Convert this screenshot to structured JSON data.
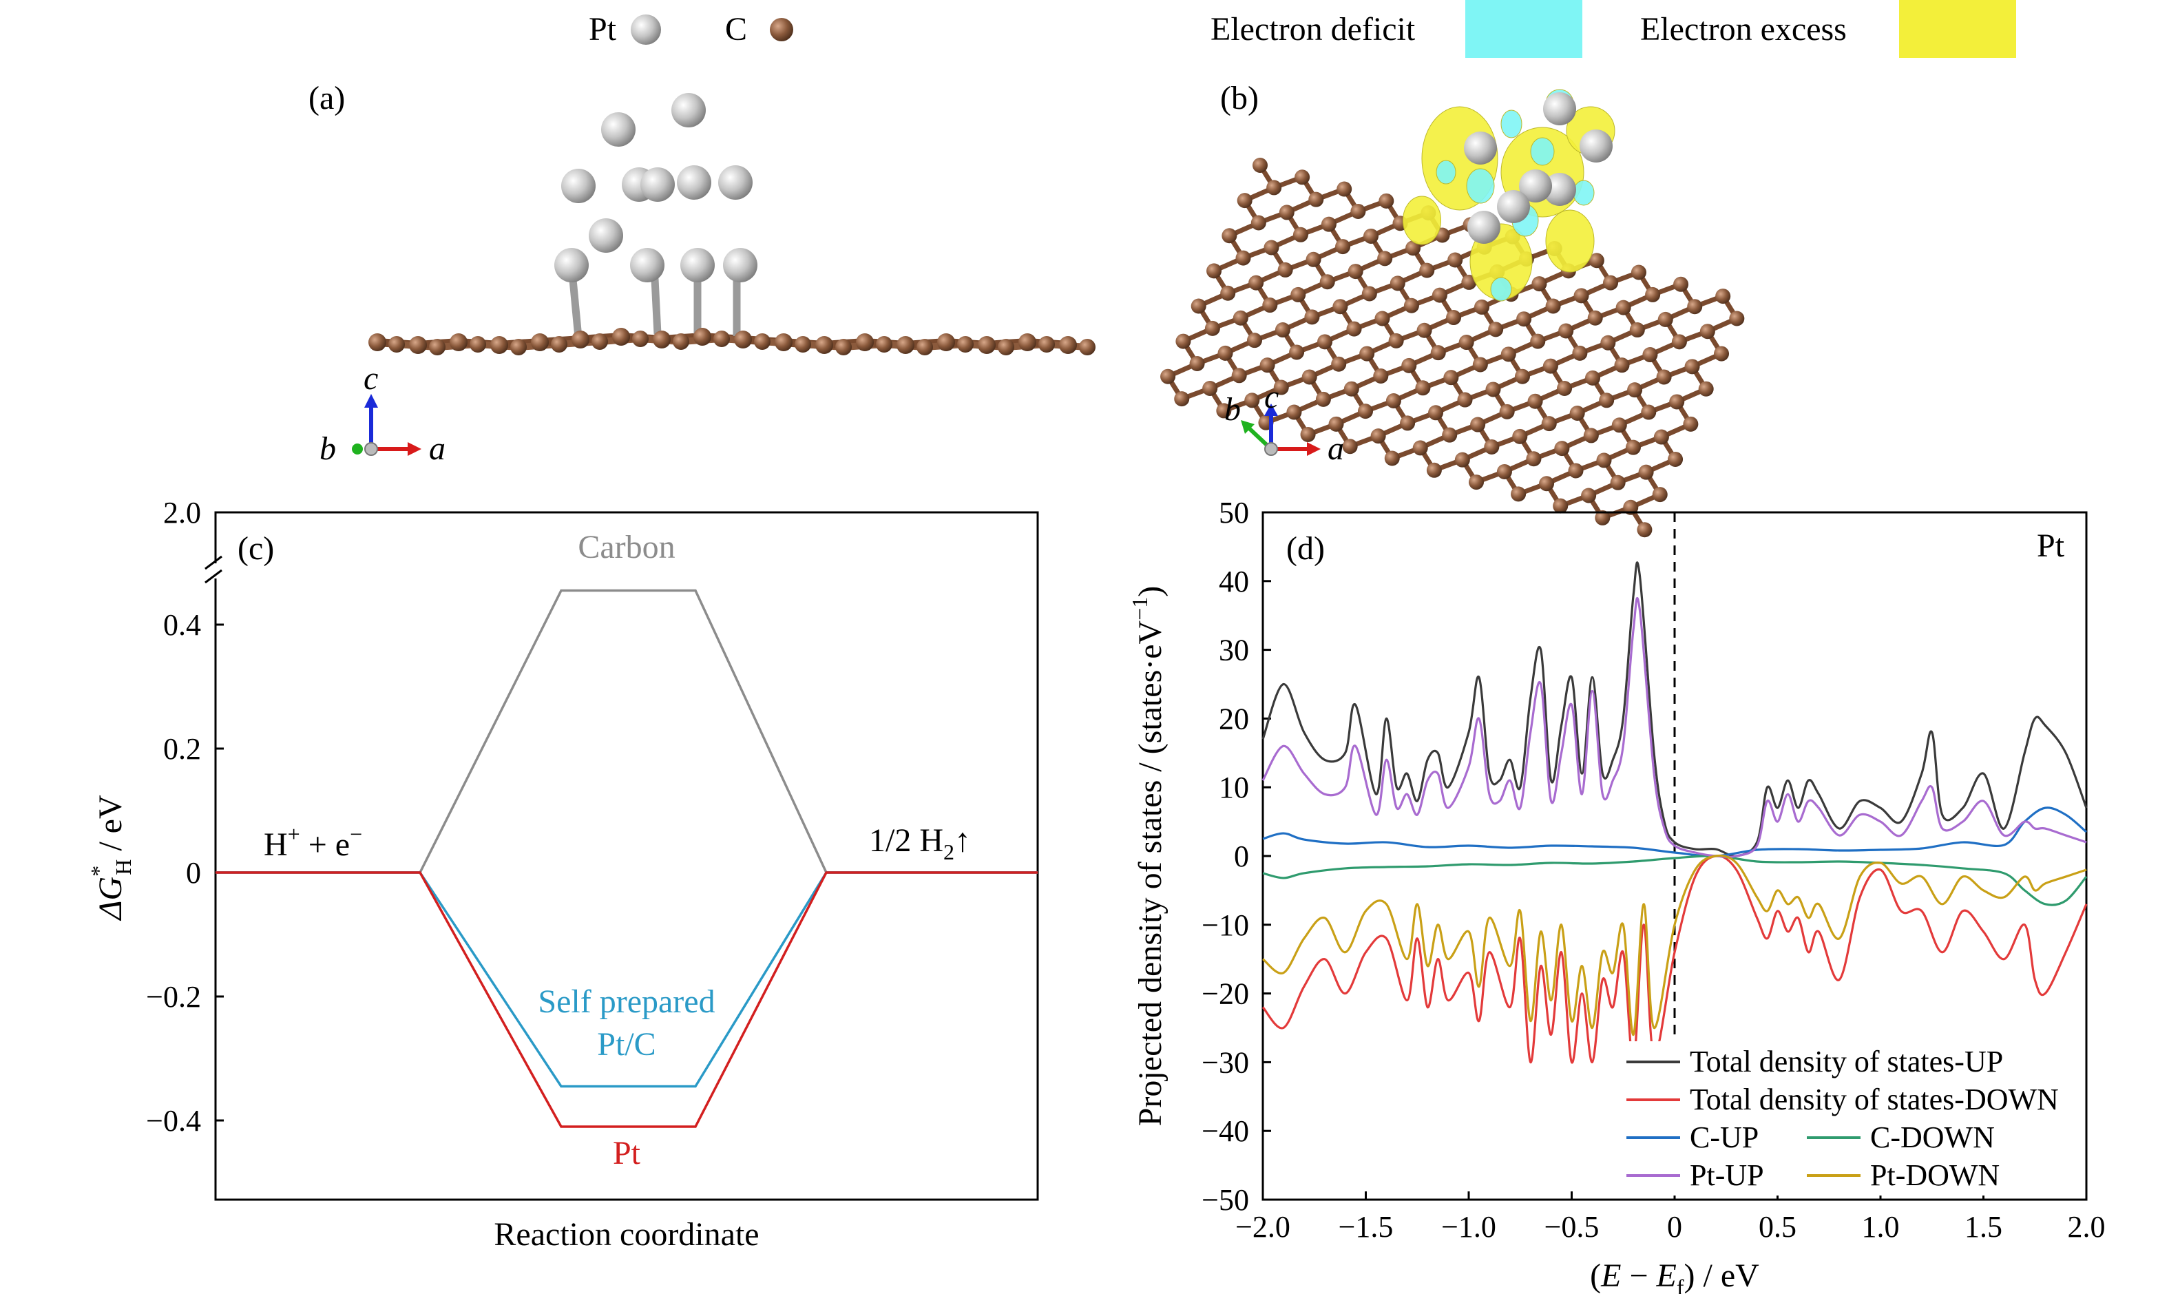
{
  "legend_top": {
    "pt_label": "Pt",
    "c_label": "C",
    "deficit_label": "Electron deficit",
    "excess_label": "Electron excess",
    "colors": {
      "pt": "#b9b9b9",
      "c": "#8b5a3c",
      "deficit": "#7ff5f5",
      "excess": "#f3ef3a"
    }
  },
  "panel_a": {
    "label": "(a)",
    "axes": {
      "c": "c",
      "b": "b",
      "a": "a"
    }
  },
  "panel_b": {
    "label": "(b)",
    "axes": {
      "c": "c",
      "b": "b",
      "a": "a"
    }
  },
  "chart_data": [
    {
      "type": "line",
      "panel": "(c)",
      "title": "",
      "xlabel": "Reaction coordinate",
      "ylabel_main": "ΔG",
      "ylabel_sup": "*",
      "ylabel_sub": "H",
      "ylabel_unit": " / eV",
      "yticks": [
        {
          "value": -0.4,
          "label": "−0.4"
        },
        {
          "value": -0.2,
          "label": "−0.2"
        },
        {
          "value": 0,
          "label": "0"
        },
        {
          "value": 0.2,
          "label": "0.2"
        },
        {
          "value": 0.4,
          "label": "0.4"
        },
        {
          "value": 2.0,
          "label": "2.0"
        }
      ],
      "ylim": [
        -0.5,
        0.5
      ],
      "axis_break": true,
      "start_label": {
        "main": "H",
        "sup1": "+",
        "mid": " + e",
        "sup2": "−"
      },
      "end_label": {
        "main": "1/2 H",
        "sub": "2",
        "tail": "↑"
      },
      "series": [
        {
          "name": "Carbon",
          "label_lines": [
            "Carbon"
          ],
          "color": "#8c8c8c",
          "dg": 0.455
        },
        {
          "name": "Self prepared Pt/C",
          "label_lines": [
            "Self prepared",
            "Pt/C"
          ],
          "color": "#2a9ac7",
          "dg": -0.345
        },
        {
          "name": "Pt",
          "label_lines": [
            "Pt"
          ],
          "color": "#d31f1f",
          "dg": -0.41
        }
      ]
    },
    {
      "type": "line",
      "panel": "(d)",
      "title": "",
      "annotation": "Pt",
      "xlabel_parts": {
        "open": "(",
        "e": "E",
        "minus": " − ",
        "ef": "E",
        "ef_sub": "f",
        "close": ")",
        "unit": " / eV"
      },
      "ylabel_parts": {
        "main": "Projected density of states / (states·eV",
        "sup": "−1",
        "close": ")"
      },
      "xlim": [
        -2.0,
        2.0
      ],
      "ylim": [
        -50,
        50
      ],
      "xticks": [
        {
          "value": -2.0,
          "label": "−2.0"
        },
        {
          "value": -1.5,
          "label": "−1.5"
        },
        {
          "value": -1.0,
          "label": "−1.0"
        },
        {
          "value": -0.5,
          "label": "−0.5"
        },
        {
          "value": 0,
          "label": "0"
        },
        {
          "value": 0.5,
          "label": "0.5"
        },
        {
          "value": 1.0,
          "label": "1.0"
        },
        {
          "value": 1.5,
          "label": "1.5"
        },
        {
          "value": 2.0,
          "label": "2.0"
        }
      ],
      "yticks": [
        {
          "value": -50,
          "label": "−50"
        },
        {
          "value": -40,
          "label": "−40"
        },
        {
          "value": -30,
          "label": "−30"
        },
        {
          "value": -20,
          "label": "−20"
        },
        {
          "value": -10,
          "label": "−10"
        },
        {
          "value": 0,
          "label": "0"
        },
        {
          "value": 10,
          "label": "10"
        },
        {
          "value": 20,
          "label": "20"
        },
        {
          "value": 30,
          "label": "30"
        },
        {
          "value": 40,
          "label": "40"
        },
        {
          "value": 50,
          "label": "50"
        }
      ],
      "fermi_line_x": 0,
      "series": [
        {
          "name": "Total density of states-UP",
          "color": "#3a3a3a",
          "x": [
            -2.0,
            -1.9,
            -1.8,
            -1.7,
            -1.6,
            -1.55,
            -1.45,
            -1.4,
            -1.35,
            -1.3,
            -1.25,
            -1.2,
            -1.15,
            -1.1,
            -1.0,
            -0.95,
            -0.9,
            -0.85,
            -0.8,
            -0.75,
            -0.7,
            -0.65,
            -0.6,
            -0.55,
            -0.5,
            -0.45,
            -0.4,
            -0.35,
            -0.3,
            -0.25,
            -0.2,
            -0.17,
            -0.1,
            -0.05,
            0,
            0.1,
            0.2,
            0.3,
            0.4,
            0.45,
            0.5,
            0.55,
            0.6,
            0.65,
            0.7,
            0.8,
            0.9,
            1.0,
            1.1,
            1.2,
            1.25,
            1.3,
            1.4,
            1.5,
            1.6,
            1.7,
            1.75,
            1.8,
            1.9,
            2.0
          ],
          "y": [
            17,
            25,
            18,
            14,
            15,
            22,
            9,
            20,
            10,
            12,
            8,
            14,
            15,
            10,
            18,
            26,
            12,
            11,
            14,
            10,
            23,
            30,
            11,
            19,
            26,
            12,
            26,
            12,
            14,
            20,
            38,
            41,
            15,
            5,
            2,
            1,
            1,
            0,
            2,
            10,
            7,
            11,
            7,
            11,
            9,
            4,
            8,
            7,
            5,
            12,
            18,
            6,
            7,
            12,
            4,
            15,
            20,
            19,
            15,
            7
          ]
        },
        {
          "name": "Total density of states-DOWN",
          "color": "#e33a3a",
          "x": [
            -2.0,
            -1.9,
            -1.8,
            -1.7,
            -1.6,
            -1.5,
            -1.4,
            -1.3,
            -1.25,
            -1.2,
            -1.15,
            -1.1,
            -1.0,
            -0.95,
            -0.9,
            -0.8,
            -0.75,
            -0.7,
            -0.65,
            -0.6,
            -0.55,
            -0.5,
            -0.45,
            -0.4,
            -0.35,
            -0.3,
            -0.25,
            -0.2,
            -0.15,
            -0.1,
            0,
            0.1,
            0.2,
            0.3,
            0.4,
            0.45,
            0.5,
            0.55,
            0.6,
            0.65,
            0.7,
            0.8,
            0.9,
            1.0,
            1.1,
            1.2,
            1.3,
            1.4,
            1.5,
            1.6,
            1.7,
            1.75,
            1.8,
            1.9,
            2.0
          ],
          "y": [
            -22,
            -25,
            -19,
            -15,
            -20,
            -14,
            -12,
            -21,
            -12,
            -22,
            -15,
            -21,
            -17,
            -24,
            -14,
            -22,
            -12,
            -30,
            -16,
            -26,
            -14,
            -30,
            -20,
            -30,
            -18,
            -22,
            -14,
            -30,
            -10,
            -29,
            -14,
            -3,
            0,
            -2,
            -9,
            -12,
            -8,
            -11,
            -9,
            -14,
            -11,
            -18,
            -6,
            -2,
            -8,
            -8,
            -14,
            -8,
            -11,
            -15,
            -10,
            -18,
            -20,
            -14,
            -7
          ]
        },
        {
          "name": "C-UP",
          "color": "#1f6fc4",
          "x": [
            -2.0,
            -1.9,
            -1.8,
            -1.6,
            -1.4,
            -1.2,
            -1.0,
            -0.8,
            -0.6,
            -0.4,
            -0.2,
            0,
            0.2,
            0.4,
            0.6,
            0.8,
            1.0,
            1.2,
            1.4,
            1.6,
            1.7,
            1.8,
            1.9,
            2.0
          ],
          "y": [
            2.5,
            3.3,
            2.4,
            1.8,
            2.0,
            1.3,
            1.5,
            1.2,
            1.5,
            1.4,
            1.2,
            0.5,
            0,
            0.9,
            1.0,
            0.8,
            0.9,
            1.1,
            2.0,
            1.6,
            5.0,
            7.0,
            6.0,
            3.5
          ]
        },
        {
          "name": "C-DOWN",
          "color": "#2f9b6e",
          "x": [
            -2.0,
            -1.9,
            -1.8,
            -1.6,
            -1.4,
            -1.2,
            -1.0,
            -0.8,
            -0.6,
            -0.4,
            -0.2,
            0,
            0.2,
            0.4,
            0.6,
            0.8,
            1.0,
            1.2,
            1.4,
            1.6,
            1.7,
            1.8,
            1.9,
            2.0
          ],
          "y": [
            -2.5,
            -3.2,
            -2.5,
            -1.8,
            -1.6,
            -1.5,
            -1.2,
            -1.3,
            -1.0,
            -1.1,
            -0.8,
            -0.3,
            0,
            -0.8,
            -0.9,
            -0.8,
            -1.0,
            -1.3,
            -1.8,
            -2.5,
            -5.0,
            -7.0,
            -6.5,
            -3.0
          ]
        },
        {
          "name": "Pt-UP",
          "color": "#a86bd0",
          "x": [
            -2.0,
            -1.9,
            -1.8,
            -1.7,
            -1.6,
            -1.55,
            -1.45,
            -1.4,
            -1.35,
            -1.3,
            -1.25,
            -1.2,
            -1.15,
            -1.1,
            -1.0,
            -0.95,
            -0.9,
            -0.85,
            -0.8,
            -0.75,
            -0.7,
            -0.65,
            -0.6,
            -0.55,
            -0.5,
            -0.45,
            -0.4,
            -0.35,
            -0.3,
            -0.25,
            -0.2,
            -0.17,
            -0.1,
            -0.05,
            0,
            0.1,
            0.2,
            0.3,
            0.4,
            0.45,
            0.5,
            0.55,
            0.6,
            0.65,
            0.7,
            0.8,
            0.9,
            1.0,
            1.1,
            1.2,
            1.25,
            1.3,
            1.4,
            1.5,
            1.6,
            1.7,
            1.75,
            1.8,
            1.9,
            2.0
          ],
          "y": [
            11,
            16,
            12,
            9,
            10,
            16,
            6,
            14,
            7,
            9,
            6,
            11,
            12,
            7,
            13,
            20,
            9,
            8,
            11,
            7,
            18,
            25,
            8,
            15,
            22,
            9,
            24,
            9,
            11,
            16,
            33,
            36,
            12,
            4,
            1.5,
            0.5,
            0,
            0,
            1.5,
            8,
            5,
            9,
            5,
            8,
            7,
            3,
            6,
            5,
            3,
            8,
            10,
            4,
            5,
            8,
            3,
            5,
            4,
            4,
            3,
            2
          ]
        },
        {
          "name": "Pt-DOWN",
          "color": "#c9a016",
          "x": [
            -2.0,
            -1.9,
            -1.8,
            -1.7,
            -1.6,
            -1.5,
            -1.4,
            -1.3,
            -1.25,
            -1.2,
            -1.15,
            -1.1,
            -1.0,
            -0.95,
            -0.9,
            -0.8,
            -0.75,
            -0.7,
            -0.65,
            -0.6,
            -0.55,
            -0.5,
            -0.45,
            -0.4,
            -0.35,
            -0.3,
            -0.25,
            -0.2,
            -0.15,
            -0.1,
            0,
            0.1,
            0.2,
            0.3,
            0.4,
            0.45,
            0.5,
            0.55,
            0.6,
            0.65,
            0.7,
            0.8,
            0.9,
            1.0,
            1.1,
            1.2,
            1.3,
            1.4,
            1.5,
            1.6,
            1.7,
            1.75,
            1.8,
            1.9,
            2.0
          ],
          "y": [
            -15,
            -17,
            -12,
            -9,
            -14,
            -8,
            -7,
            -15,
            -7,
            -16,
            -10,
            -15,
            -11,
            -19,
            -9,
            -16,
            -8,
            -24,
            -11,
            -21,
            -10,
            -24,
            -16,
            -25,
            -14,
            -17,
            -10,
            -26,
            -7,
            -25,
            -10,
            -2,
            0,
            -1,
            -6,
            -8,
            -5,
            -7,
            -6,
            -9,
            -7,
            -12,
            -3,
            -1,
            -4,
            -3,
            -7,
            -3,
            -5,
            -6,
            -3,
            -5,
            -4,
            -3,
            -2
          ]
        }
      ],
      "legend_labels": {
        "total_up": "Total density of states-UP",
        "total_down": "Total density of states-DOWN",
        "c_up": "C-UP",
        "c_down": "C-DOWN",
        "pt_up": "Pt-UP",
        "pt_down": "Pt-DOWN"
      }
    }
  ]
}
